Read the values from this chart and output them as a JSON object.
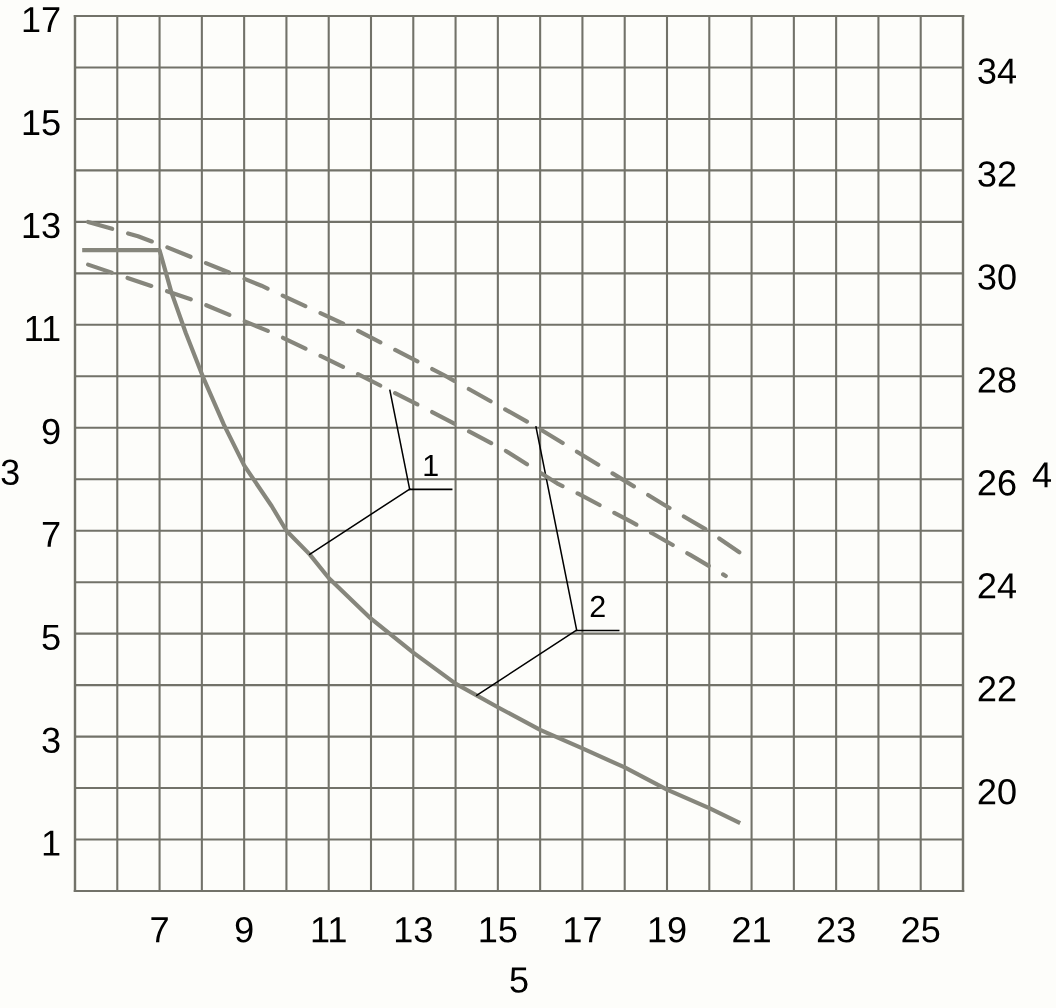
{
  "chart_data": {
    "type": "line",
    "xlabel": "5",
    "ylabel": "3",
    "y2label": "4",
    "xlim": [
      5,
      26
    ],
    "xticks": [
      {
        "value": 6,
        "label": null
      },
      7,
      {
        "value": 8,
        "label": null
      },
      9,
      {
        "value": 10,
        "label": null
      },
      11,
      {
        "value": 12,
        "label": null
      },
      13,
      {
        "value": 14,
        "label": null
      },
      15,
      {
        "value": 16,
        "label": null
      },
      17,
      {
        "value": 18,
        "label": null
      },
      19,
      {
        "value": 20,
        "label": null
      },
      21,
      {
        "value": 22,
        "label": null
      },
      23,
      {
        "value": 24,
        "label": null
      },
      25
    ],
    "ylim": [
      0,
      17
    ],
    "yticks": [
      1,
      {
        "value": 2,
        "label": null
      },
      3,
      {
        "value": 4,
        "label": null
      },
      5,
      {
        "value": 6,
        "label": null
      },
      7,
      {
        "value": 8,
        "label": null
      },
      9,
      {
        "value": 10,
        "label": null
      },
      11,
      {
        "value": 12,
        "label": null
      },
      13,
      {
        "value": 14,
        "label": null
      },
      15,
      {
        "value": 16,
        "label": null
      },
      17
    ],
    "y2lim": [
      18,
      35
    ],
    "y2ticks": [
      20,
      22,
      24,
      26,
      28,
      30,
      32,
      34
    ],
    "grid": true,
    "series": [
      {
        "color": "#86867c",
        "line_style": "solid",
        "x": [
          5.17,
          7.0,
          7.28,
          7.62,
          8.03,
          8.52,
          9.0,
          9.65,
          10.0,
          10.55,
          11.0,
          12.0,
          13.0,
          14.0,
          15.0,
          16.0,
          17.0,
          18.0,
          19.0,
          20.0,
          20.73
        ],
        "values": [
          12.45,
          12.45,
          11.63,
          10.84,
          9.98,
          9.06,
          8.27,
          7.48,
          7.0,
          6.54,
          6.08,
          5.29,
          4.63,
          4.03,
          3.57,
          3.13,
          2.77,
          2.4,
          1.97,
          1.61,
          1.32
        ]
      },
      {
        "color": "#86867c",
        "line_style": "dashed",
        "axis": "y2",
        "x": [
          5.31,
          7.87,
          9.74,
          11.6,
          13.39,
          15.17,
          16.4,
          16.9,
          18.16,
          18.67,
          19.55,
          20.39
        ],
        "values": [
          30.17,
          29.46,
          28.82,
          28.08,
          27.33,
          26.56,
          25.92,
          25.72,
          25.17,
          24.94,
          24.53,
          24.12
        ]
      },
      {
        "color": "#86867c",
        "line_style": "dashed",
        "axis": "y2",
        "x": [
          5.31,
          6.49,
          7.14,
          9.41,
          11.56,
          13.71,
          15.82,
          18.92,
          19.97,
          20.71
        ],
        "values": [
          31.0,
          30.72,
          30.52,
          29.76,
          28.94,
          28.03,
          27.06,
          25.51,
          25.0,
          24.58
        ]
      }
    ],
    "annotations": [
      {
        "text": "1",
        "x": 10.55,
        "y": 6.54
      },
      {
        "text": "2",
        "x": 14.5,
        "y": 3.8
      }
    ]
  }
}
